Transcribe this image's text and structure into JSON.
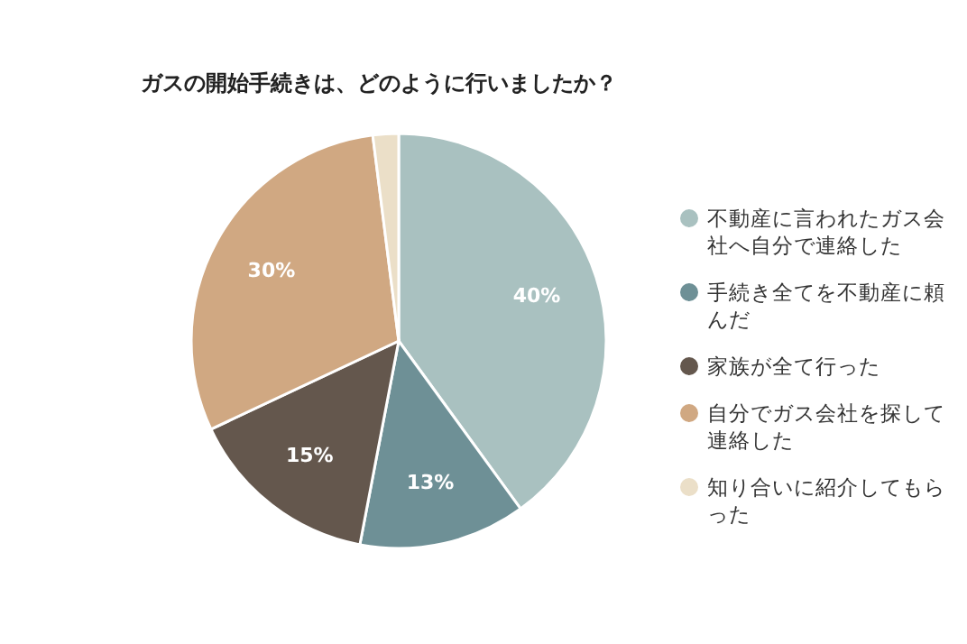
{
  "chart_data": {
    "type": "pie",
    "title": "ガスの開始手続きは、どのように行いましたか？",
    "categories": [
      "不動産に言われたガス会社へ自分で連絡した",
      "手続き全てを不動産に頼んだ",
      "家族が全て行った",
      "自分でガス会社を探して連絡した",
      "知り合いに紹介してもらった"
    ],
    "values": [
      40,
      13,
      15,
      30,
      2
    ],
    "colors": [
      "#a9c1c0",
      "#6e9096",
      "#64574d",
      "#d0a882",
      "#ebdfc8"
    ],
    "value_labels": [
      "40%",
      "13%",
      "15%",
      "30%",
      null
    ],
    "legend": "right"
  }
}
